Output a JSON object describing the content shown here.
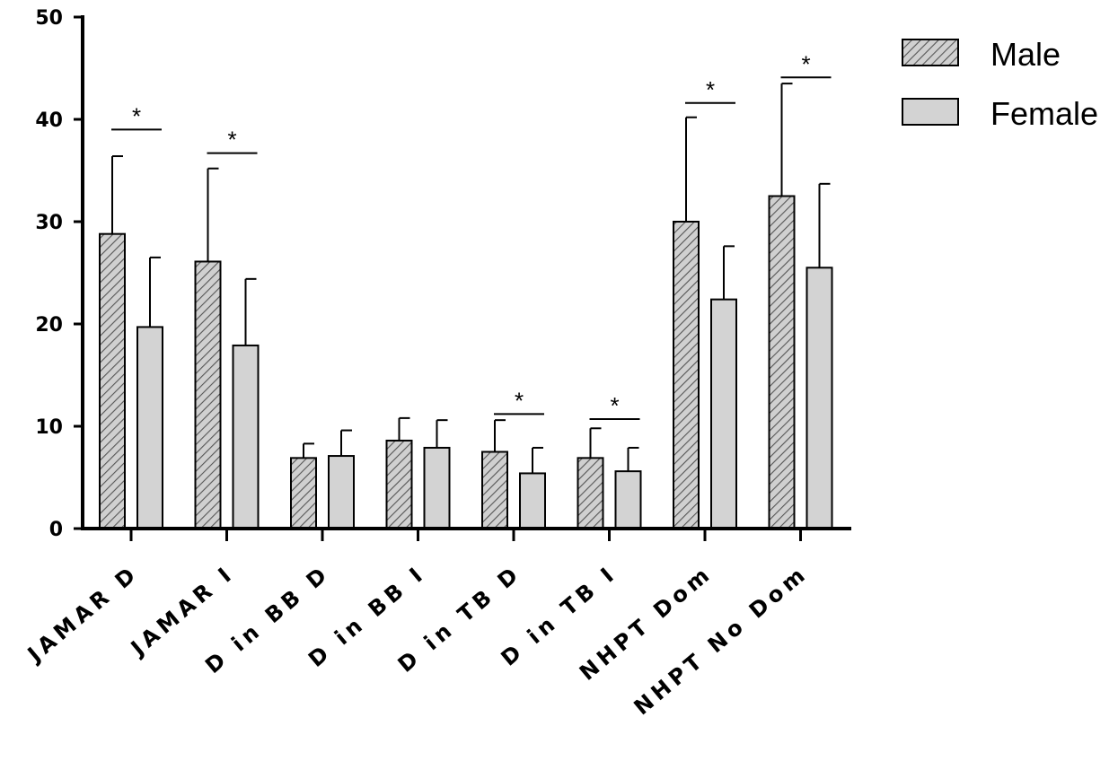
{
  "chart_data": {
    "type": "bar",
    "title": "",
    "xlabel": "",
    "ylabel": "",
    "ylim": [
      0,
      50
    ],
    "yticks": [
      "0",
      "10",
      "20",
      "30",
      "40",
      "50"
    ],
    "categories": [
      "JAMAR D",
      "JAMAR I",
      "D in BB D",
      "D in BB I",
      "D in TB D",
      "D in TB I",
      "NHPT Dom",
      "NHPT No Dom"
    ],
    "series": [
      {
        "name": "Male",
        "pattern": "hatched",
        "color": "#c8c8c8",
        "values": [
          28.8,
          26.1,
          6.9,
          8.6,
          7.5,
          6.9,
          30.0,
          32.5
        ],
        "errors": [
          7.6,
          9.1,
          1.4,
          2.2,
          3.1,
          2.9,
          10.2,
          11.0
        ]
      },
      {
        "name": "Female",
        "pattern": "solid",
        "color": "#d3d3d3",
        "values": [
          19.7,
          17.9,
          7.1,
          7.9,
          5.4,
          5.6,
          22.4,
          25.5
        ],
        "errors": [
          6.8,
          6.5,
          2.5,
          2.7,
          2.5,
          2.3,
          5.2,
          8.2
        ]
      }
    ],
    "significance": [
      {
        "category_index": 0,
        "label": "*",
        "level": 39.0
      },
      {
        "category_index": 1,
        "label": "*",
        "level": 36.7
      },
      {
        "category_index": 4,
        "label": "*",
        "level": 11.2
      },
      {
        "category_index": 5,
        "label": "*",
        "level": 10.7
      },
      {
        "category_index": 6,
        "label": "*",
        "level": 41.6
      },
      {
        "category_index": 7,
        "label": "*",
        "level": 44.1
      }
    ],
    "legend": {
      "position": "top-right",
      "entries": [
        "Male",
        "Female"
      ]
    },
    "grid": false
  }
}
